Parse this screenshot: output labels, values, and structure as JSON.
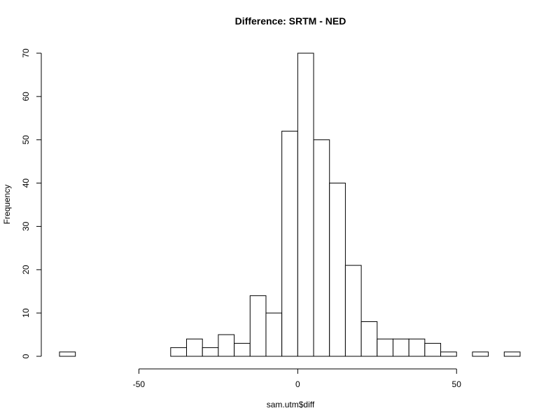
{
  "chart_data": {
    "type": "bar",
    "title": "Difference: SRTM - NED",
    "xlabel": "sam.utm$diff",
    "ylabel": "Frequency",
    "bin_width": 5,
    "bins": [
      {
        "x0": -75,
        "x1": -70,
        "count": 1
      },
      {
        "x0": -70,
        "x1": -65,
        "count": 0
      },
      {
        "x0": -65,
        "x1": -60,
        "count": 0
      },
      {
        "x0": -60,
        "x1": -55,
        "count": 0
      },
      {
        "x0": -55,
        "x1": -50,
        "count": 0
      },
      {
        "x0": -50,
        "x1": -45,
        "count": 0
      },
      {
        "x0": -45,
        "x1": -40,
        "count": 0
      },
      {
        "x0": -40,
        "x1": -35,
        "count": 2
      },
      {
        "x0": -35,
        "x1": -30,
        "count": 4
      },
      {
        "x0": -30,
        "x1": -25,
        "count": 2
      },
      {
        "x0": -25,
        "x1": -20,
        "count": 5
      },
      {
        "x0": -20,
        "x1": -15,
        "count": 3
      },
      {
        "x0": -15,
        "x1": -10,
        "count": 14
      },
      {
        "x0": -10,
        "x1": -5,
        "count": 10
      },
      {
        "x0": -5,
        "x1": 0,
        "count": 52
      },
      {
        "x0": 0,
        "x1": 5,
        "count": 70
      },
      {
        "x0": 5,
        "x1": 10,
        "count": 50
      },
      {
        "x0": 10,
        "x1": 15,
        "count": 40
      },
      {
        "x0": 15,
        "x1": 20,
        "count": 21
      },
      {
        "x0": 20,
        "x1": 25,
        "count": 8
      },
      {
        "x0": 25,
        "x1": 30,
        "count": 4
      },
      {
        "x0": 30,
        "x1": 35,
        "count": 4
      },
      {
        "x0": 35,
        "x1": 40,
        "count": 4
      },
      {
        "x0": 40,
        "x1": 45,
        "count": 3
      },
      {
        "x0": 45,
        "x1": 50,
        "count": 1
      },
      {
        "x0": 50,
        "x1": 55,
        "count": 0
      },
      {
        "x0": 55,
        "x1": 60,
        "count": 1
      },
      {
        "x0": 60,
        "x1": 65,
        "count": 0
      },
      {
        "x0": 65,
        "x1": 70,
        "count": 1
      }
    ],
    "xticks": [
      -50,
      0,
      50
    ],
    "yticks": [
      0,
      10,
      20,
      30,
      40,
      50,
      60,
      70
    ],
    "xlim": [
      -75,
      70
    ],
    "ylim": [
      0,
      70
    ],
    "grid": false,
    "bar_fill": "#ffffff",
    "bar_stroke": "#000000"
  }
}
